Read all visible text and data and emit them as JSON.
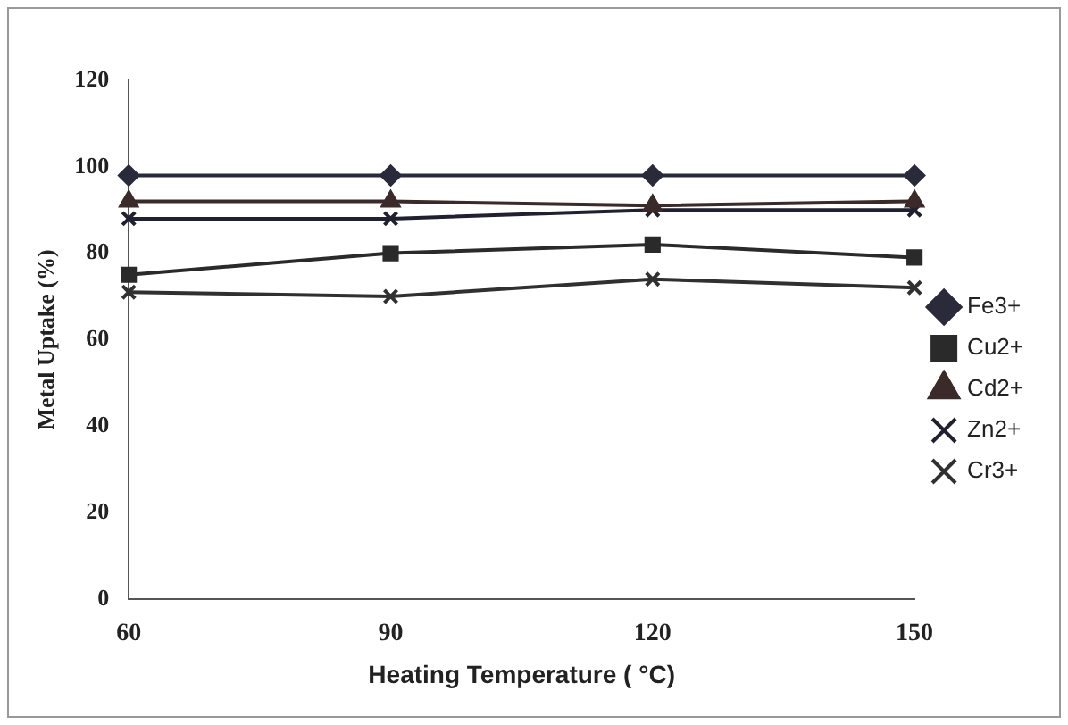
{
  "chart_data": {
    "type": "line",
    "xlabel": "Heating Temperature ( °C)",
    "ylabel": "Metal Uptake (%)",
    "categories": [
      "60",
      "90",
      "120",
      "150"
    ],
    "ylim": [
      0,
      120
    ],
    "yticks": [
      0,
      20,
      40,
      60,
      80,
      100,
      120
    ],
    "grid": false,
    "legend": "right",
    "series": [
      {
        "name": "Fe3+",
        "color": "#2a2a3a",
        "marker": "diamond",
        "values": [
          98,
          98,
          98,
          98
        ]
      },
      {
        "name": "Cu2+",
        "color": "#2a2a2a",
        "marker": "square",
        "values": [
          75,
          80,
          82,
          79
        ]
      },
      {
        "name": "Cd2+",
        "color": "#3a2a2a",
        "marker": "triangle",
        "values": [
          92,
          92,
          91,
          92
        ]
      },
      {
        "name": "Zn2+",
        "color": "#202030",
        "marker": "cross",
        "values": [
          88,
          88,
          90,
          90
        ]
      },
      {
        "name": "Cr3+",
        "color": "#303030",
        "marker": "cross",
        "values": [
          71,
          70,
          74,
          72
        ]
      }
    ]
  }
}
